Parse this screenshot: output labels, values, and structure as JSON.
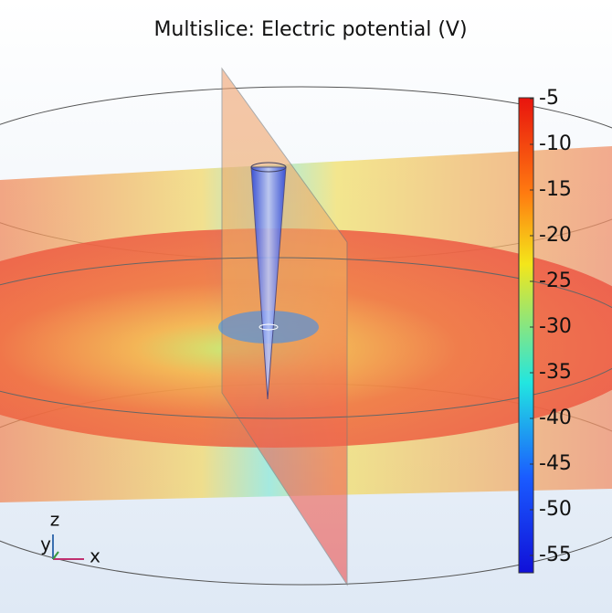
{
  "title": "Multislice: Electric potential (V)",
  "colorbar": {
    "lim": [
      -56.9,
      -4.9
    ],
    "ticks": [
      -5,
      -10,
      -15,
      -20,
      -25,
      -30,
      -35,
      -40,
      -45,
      -50,
      -55
    ]
  },
  "axes": {
    "z": "z",
    "y": "y",
    "x": "x"
  }
}
